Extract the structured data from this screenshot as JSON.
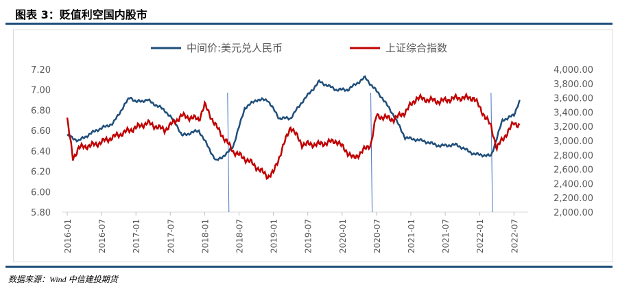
{
  "title": "图表 3：贬值利空国内股市",
  "source": "数据来源：Wind 中信建投期货",
  "chart_data": {
    "type": "line",
    "title": "贬值利空国内股市",
    "x_range": [
      "2016-01",
      "2022-09"
    ],
    "x_ticks": [
      "2016-01",
      "2016-07",
      "2017-01",
      "2017-07",
      "2018-01",
      "2018-07",
      "2019-01",
      "2019-07",
      "2020-01",
      "2020-07",
      "2021-01",
      "2021-07",
      "2022-01",
      "2022-07"
    ],
    "y_left": {
      "range": [
        5.8,
        7.2
      ],
      "ticks": [
        "5.80",
        "6.00",
        "6.20",
        "6.40",
        "6.60",
        "6.80",
        "7.00",
        "7.20"
      ]
    },
    "y_right": {
      "range": [
        2000,
        4000
      ],
      "ticks": [
        "2,000.00",
        "2,200.00",
        "2,400.00",
        "2,600.00",
        "2,800.00",
        "3,000.00",
        "3,200.00",
        "3,400.00",
        "3,600.00",
        "3,800.00",
        "4,000.00"
      ]
    },
    "legend_position": "top",
    "series": [
      {
        "name": "中间价:美元兑人民币",
        "axis": "left",
        "color": "#1f4e79",
        "points": [
          [
            "2016-01",
            6.55
          ],
          [
            "2016-03",
            6.5
          ],
          [
            "2016-06",
            6.6
          ],
          [
            "2016-09",
            6.67
          ],
          [
            "2016-11",
            6.85
          ],
          [
            "2016-12",
            6.93
          ],
          [
            "2017-01",
            6.88
          ],
          [
            "2017-03",
            6.9
          ],
          [
            "2017-06",
            6.8
          ],
          [
            "2017-08",
            6.67
          ],
          [
            "2017-09",
            6.55
          ],
          [
            "2017-12",
            6.6
          ],
          [
            "2018-03",
            6.3
          ],
          [
            "2018-05",
            6.38
          ],
          [
            "2018-06",
            6.45
          ],
          [
            "2018-08",
            6.82
          ],
          [
            "2018-10",
            6.9
          ],
          [
            "2018-12",
            6.9
          ],
          [
            "2019-02",
            6.72
          ],
          [
            "2019-04",
            6.72
          ],
          [
            "2019-06",
            6.88
          ],
          [
            "2019-09",
            7.08
          ],
          [
            "2019-12",
            7.0
          ],
          [
            "2020-02",
            7.0
          ],
          [
            "2020-05",
            7.12
          ],
          [
            "2020-08",
            6.92
          ],
          [
            "2020-10",
            6.75
          ],
          [
            "2020-12",
            6.53
          ],
          [
            "2021-03",
            6.5
          ],
          [
            "2021-06",
            6.45
          ],
          [
            "2021-09",
            6.46
          ],
          [
            "2021-12",
            6.37
          ],
          [
            "2022-03",
            6.35
          ],
          [
            "2022-05",
            6.7
          ],
          [
            "2022-07",
            6.75
          ],
          [
            "2022-08",
            6.9
          ]
        ]
      },
      {
        "name": "上证综合指数",
        "axis": "right",
        "color": "#c00000",
        "points": [
          [
            "2016-01",
            3300
          ],
          [
            "2016-02",
            2750
          ],
          [
            "2016-03",
            2900
          ],
          [
            "2016-06",
            2950
          ],
          [
            "2016-09",
            3050
          ],
          [
            "2016-12",
            3150
          ],
          [
            "2017-03",
            3250
          ],
          [
            "2017-06",
            3150
          ],
          [
            "2017-09",
            3350
          ],
          [
            "2017-12",
            3300
          ],
          [
            "2018-01",
            3500
          ],
          [
            "2018-03",
            3200
          ],
          [
            "2018-06",
            2850
          ],
          [
            "2018-09",
            2700
          ],
          [
            "2018-12",
            2500
          ],
          [
            "2019-01",
            2550
          ],
          [
            "2019-04",
            3200
          ],
          [
            "2019-06",
            2950
          ],
          [
            "2019-09",
            2950
          ],
          [
            "2019-12",
            3000
          ],
          [
            "2020-03",
            2750
          ],
          [
            "2020-06",
            2950
          ],
          [
            "2020-07",
            3350
          ],
          [
            "2020-10",
            3300
          ],
          [
            "2020-12",
            3400
          ],
          [
            "2021-02",
            3600
          ],
          [
            "2021-06",
            3550
          ],
          [
            "2021-09",
            3600
          ],
          [
            "2021-12",
            3600
          ],
          [
            "2022-03",
            3200
          ],
          [
            "2022-04",
            2900
          ],
          [
            "2022-07",
            3250
          ],
          [
            "2022-08",
            3220
          ]
        ]
      }
    ],
    "vertical_markers": [
      "2018-05",
      "2020-06",
      "2022-03"
    ]
  }
}
